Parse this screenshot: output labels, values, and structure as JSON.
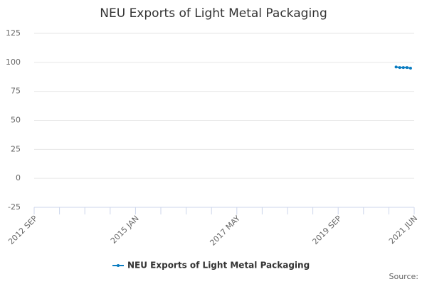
{
  "chart_data": {
    "type": "line",
    "title": "NEU Exports of Light Metal Packaging",
    "x": [
      "2021 JAN",
      "2021 FEB",
      "2021 MAR",
      "2021 APR",
      "2021 MAY"
    ],
    "series": [
      {
        "name": "NEU Exports of Light Metal Packaging",
        "color": "#0a7cc1",
        "values": [
          96,
          95.5,
          95.5,
          95.5,
          95
        ]
      }
    ],
    "xlim": [
      "2012 SEP",
      "2021 JUN"
    ],
    "xticks": [
      "2012 SEP",
      "2015 JAN",
      "2017 MAY",
      "2019 SEP",
      "2021 JUN"
    ],
    "xminorticks": [
      "2013 APR",
      "2013 NOV",
      "2014 JUN",
      "2015 AUG",
      "2016 MAR",
      "2016 OCT",
      "2017 DEC",
      "2018 JUL",
      "2019 FEB",
      "2020 APR",
      "2020 NOV"
    ],
    "ylim": [
      -25,
      125
    ],
    "yticks": [
      -25,
      0,
      25,
      50,
      75,
      100,
      125
    ],
    "grid": true,
    "legend": "bottom",
    "source": "Source:"
  }
}
